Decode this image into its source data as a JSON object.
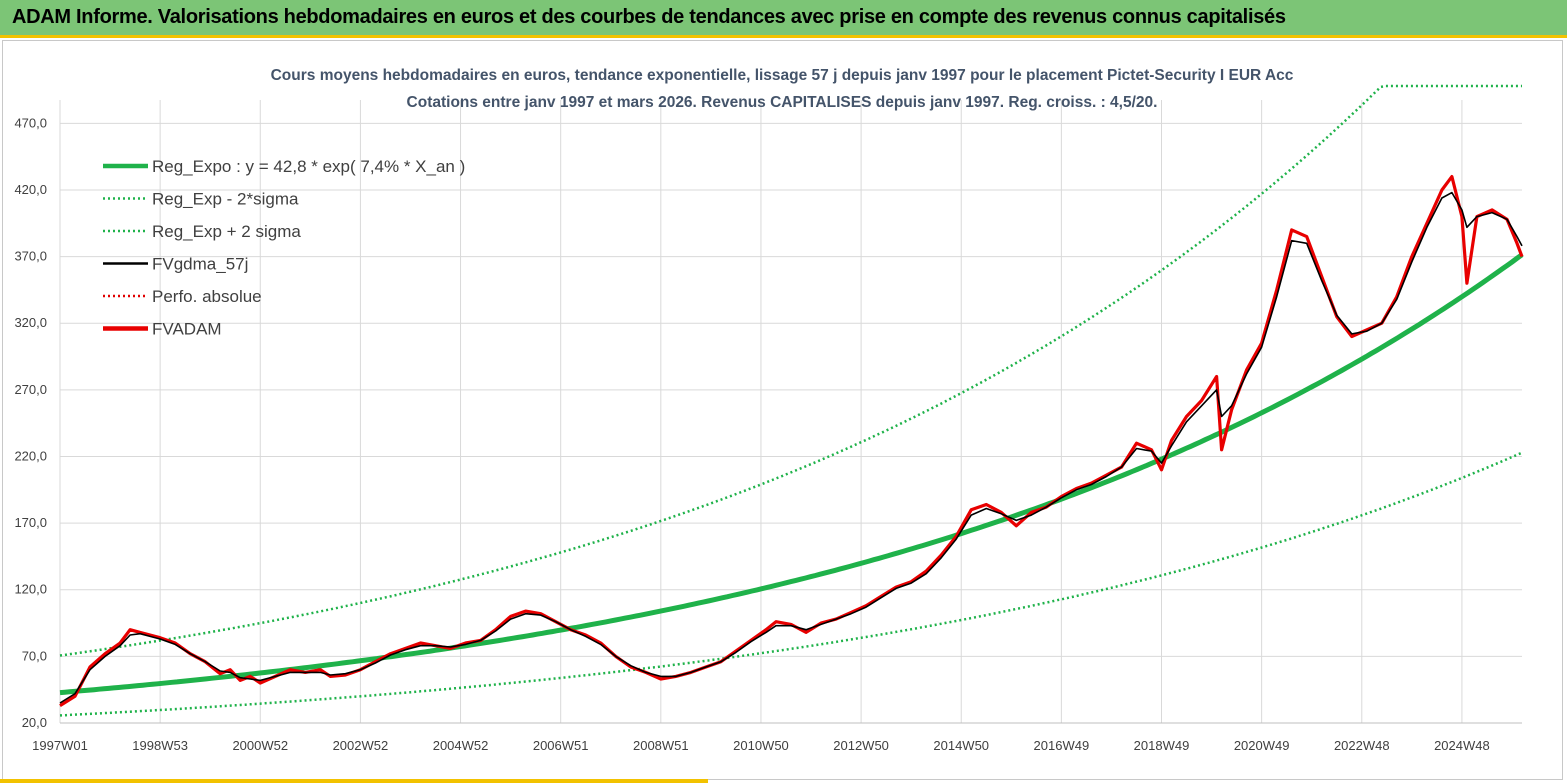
{
  "header": {
    "banner_title": "ADAM Informe. Valorisations hebdomadaires en euros et des courbes de tendances avec prise en compte des revenus connus capitalisés"
  },
  "colors": {
    "banner_bg": "#7cc576",
    "accent_yellow": "#f2c200",
    "reg_expo": "#1fb24a",
    "sigma_bands": "#1fb24a",
    "fvgdma": "#000000",
    "perfo": "#e00000",
    "fvadam": "#e80000",
    "grid": "#d9d9d9"
  },
  "chart_data": {
    "type": "line",
    "title": "Cours moyens hebdomadaires en euros, tendance exponentielle, lissage 57 j depuis janv 1997 pour le placement Pictet-Security I EUR Acc",
    "subtitle": "Cotations entre janv 1997 et mars 2026. Revenus CAPITALISES depuis janv 1997. Reg. croiss. : 4,5/20.",
    "xlabel": "",
    "ylabel": "",
    "x_range": [
      1997.0,
      2026.2
    ],
    "ylim": [
      20,
      480
    ],
    "y_ticks": [
      "20,0",
      "70,0",
      "120,0",
      "170,0",
      "220,0",
      "270,0",
      "320,0",
      "370,0",
      "420,0",
      "470,0"
    ],
    "x_tick_labels": [
      "1997W01",
      "1998W53",
      "2000W52",
      "2002W52",
      "2004W52",
      "2006W51",
      "2008W51",
      "2010W50",
      "2012W50",
      "2014W50",
      "2016W49",
      "2018W49",
      "2020W49",
      "2022W48",
      "2024W48"
    ],
    "x_tick_years": [
      1997.0,
      1999.0,
      2001.0,
      2003.0,
      2005.0,
      2007.0,
      2009.0,
      2011.0,
      2013.0,
      2015.0,
      2017.0,
      2019.0,
      2021.0,
      2023.0,
      2025.0
    ],
    "grid": true,
    "legend_position": "top-left",
    "legend": [
      {
        "label": "Reg_Expo : y = 42,8 * exp( 7,4% *  X_an )",
        "style": "solid-thick",
        "color": "#1fb24a"
      },
      {
        "label": "Reg_Exp - 2*sigma",
        "style": "dotted",
        "color": "#1fb24a"
      },
      {
        "label": "Reg_Exp + 2 sigma",
        "style": "dotted",
        "color": "#1fb24a"
      },
      {
        "label": "FVgdma_57j",
        "style": "solid",
        "color": "#000000"
      },
      {
        "label": "Perfo. absolue",
        "style": "dotted",
        "color": "#e00000"
      },
      {
        "label": "FVADAM",
        "style": "solid-thick",
        "color": "#e80000"
      }
    ],
    "regression": {
      "a": 42.8,
      "rate": 0.074,
      "minus_2sigma_factor": 0.6,
      "plus_2sigma_factor": 1.65,
      "plus_2sigma_clip": 500
    },
    "series": [
      {
        "name": "FVADAM",
        "points": [
          [
            1997.0,
            33
          ],
          [
            1997.3,
            40
          ],
          [
            1997.6,
            62
          ],
          [
            1997.9,
            72
          ],
          [
            1998.2,
            80
          ],
          [
            1998.4,
            90
          ],
          [
            1998.6,
            88
          ],
          [
            1998.8,
            86
          ],
          [
            1999.0,
            84
          ],
          [
            1999.3,
            80
          ],
          [
            1999.6,
            72
          ],
          [
            1999.9,
            66
          ],
          [
            2000.2,
            57
          ],
          [
            2000.4,
            60
          ],
          [
            2000.6,
            52
          ],
          [
            2000.8,
            55
          ],
          [
            2001.0,
            50
          ],
          [
            2001.3,
            55
          ],
          [
            2001.6,
            60
          ],
          [
            2001.9,
            58
          ],
          [
            2002.2,
            60
          ],
          [
            2002.4,
            55
          ],
          [
            2002.7,
            56
          ],
          [
            2003.0,
            60
          ],
          [
            2003.3,
            66
          ],
          [
            2003.6,
            72
          ],
          [
            2003.9,
            76
          ],
          [
            2004.2,
            80
          ],
          [
            2004.5,
            78
          ],
          [
            2004.8,
            76
          ],
          [
            2005.1,
            80
          ],
          [
            2005.4,
            82
          ],
          [
            2005.7,
            90
          ],
          [
            2006.0,
            100
          ],
          [
            2006.3,
            104
          ],
          [
            2006.6,
            102
          ],
          [
            2006.9,
            96
          ],
          [
            2007.2,
            90
          ],
          [
            2007.5,
            86
          ],
          [
            2007.8,
            80
          ],
          [
            2008.1,
            70
          ],
          [
            2008.4,
            62
          ],
          [
            2008.7,
            58
          ],
          [
            2009.0,
            53
          ],
          [
            2009.3,
            55
          ],
          [
            2009.6,
            58
          ],
          [
            2009.9,
            62
          ],
          [
            2010.2,
            66
          ],
          [
            2010.5,
            74
          ],
          [
            2010.8,
            82
          ],
          [
            2011.1,
            90
          ],
          [
            2011.3,
            96
          ],
          [
            2011.6,
            94
          ],
          [
            2011.9,
            88
          ],
          [
            2012.2,
            95
          ],
          [
            2012.5,
            98
          ],
          [
            2012.8,
            103
          ],
          [
            2013.1,
            108
          ],
          [
            2013.4,
            115
          ],
          [
            2013.7,
            122
          ],
          [
            2014.0,
            126
          ],
          [
            2014.3,
            134
          ],
          [
            2014.6,
            146
          ],
          [
            2014.9,
            160
          ],
          [
            2015.2,
            180
          ],
          [
            2015.5,
            184
          ],
          [
            2015.8,
            178
          ],
          [
            2016.1,
            168
          ],
          [
            2016.4,
            178
          ],
          [
            2016.7,
            182
          ],
          [
            2017.0,
            190
          ],
          [
            2017.3,
            196
          ],
          [
            2017.6,
            200
          ],
          [
            2017.9,
            206
          ],
          [
            2018.2,
            212
          ],
          [
            2018.5,
            230
          ],
          [
            2018.8,
            225
          ],
          [
            2019.0,
            210
          ],
          [
            2019.2,
            232
          ],
          [
            2019.5,
            250
          ],
          [
            2019.8,
            262
          ],
          [
            2020.1,
            280
          ],
          [
            2020.2,
            225
          ],
          [
            2020.4,
            255
          ],
          [
            2020.7,
            285
          ],
          [
            2021.0,
            305
          ],
          [
            2021.3,
            345
          ],
          [
            2021.6,
            390
          ],
          [
            2021.9,
            385
          ],
          [
            2022.2,
            355
          ],
          [
            2022.5,
            325
          ],
          [
            2022.8,
            310
          ],
          [
            2023.1,
            315
          ],
          [
            2023.4,
            320
          ],
          [
            2023.7,
            340
          ],
          [
            2024.0,
            370
          ],
          [
            2024.3,
            395
          ],
          [
            2024.6,
            420
          ],
          [
            2024.8,
            430
          ],
          [
            2025.0,
            400
          ],
          [
            2025.1,
            350
          ],
          [
            2025.3,
            400
          ],
          [
            2025.6,
            405
          ],
          [
            2025.9,
            398
          ],
          [
            2026.1,
            380
          ],
          [
            2026.2,
            370
          ]
        ]
      },
      {
        "name": "FVgdma_57j",
        "points": [
          [
            1997.0,
            35
          ],
          [
            1997.3,
            42
          ],
          [
            1997.6,
            60
          ],
          [
            1997.9,
            70
          ],
          [
            1998.2,
            78
          ],
          [
            1998.4,
            86
          ],
          [
            1998.6,
            87
          ],
          [
            1998.8,
            85
          ],
          [
            1999.0,
            83
          ],
          [
            1999.3,
            79
          ],
          [
            1999.6,
            72
          ],
          [
            1999.9,
            66
          ],
          [
            2000.2,
            59
          ],
          [
            2000.4,
            58
          ],
          [
            2000.6,
            54
          ],
          [
            2000.8,
            53
          ],
          [
            2001.0,
            52
          ],
          [
            2001.3,
            55
          ],
          [
            2001.6,
            58
          ],
          [
            2001.9,
            58
          ],
          [
            2002.2,
            58
          ],
          [
            2002.4,
            56
          ],
          [
            2002.7,
            57
          ],
          [
            2003.0,
            60
          ],
          [
            2003.3,
            65
          ],
          [
            2003.6,
            71
          ],
          [
            2003.9,
            75
          ],
          [
            2004.2,
            78
          ],
          [
            2004.5,
            78
          ],
          [
            2004.8,
            77
          ],
          [
            2005.1,
            79
          ],
          [
            2005.4,
            82
          ],
          [
            2005.7,
            89
          ],
          [
            2006.0,
            98
          ],
          [
            2006.3,
            102
          ],
          [
            2006.6,
            101
          ],
          [
            2006.9,
            96
          ],
          [
            2007.2,
            90
          ],
          [
            2007.5,
            85
          ],
          [
            2007.8,
            79
          ],
          [
            2008.1,
            70
          ],
          [
            2008.4,
            63
          ],
          [
            2008.7,
            58
          ],
          [
            2009.0,
            55
          ],
          [
            2009.3,
            55
          ],
          [
            2009.6,
            58
          ],
          [
            2009.9,
            62
          ],
          [
            2010.2,
            66
          ],
          [
            2010.5,
            73
          ],
          [
            2010.8,
            81
          ],
          [
            2011.1,
            88
          ],
          [
            2011.3,
            93
          ],
          [
            2011.6,
            93
          ],
          [
            2011.9,
            90
          ],
          [
            2012.2,
            94
          ],
          [
            2012.5,
            98
          ],
          [
            2012.8,
            102
          ],
          [
            2013.1,
            107
          ],
          [
            2013.4,
            114
          ],
          [
            2013.7,
            121
          ],
          [
            2014.0,
            125
          ],
          [
            2014.3,
            132
          ],
          [
            2014.6,
            144
          ],
          [
            2014.9,
            158
          ],
          [
            2015.2,
            176
          ],
          [
            2015.5,
            181
          ],
          [
            2015.8,
            177
          ],
          [
            2016.1,
            172
          ],
          [
            2016.4,
            176
          ],
          [
            2016.7,
            182
          ],
          [
            2017.0,
            189
          ],
          [
            2017.3,
            195
          ],
          [
            2017.6,
            199
          ],
          [
            2017.9,
            205
          ],
          [
            2018.2,
            212
          ],
          [
            2018.5,
            226
          ],
          [
            2018.8,
            224
          ],
          [
            2019.0,
            215
          ],
          [
            2019.2,
            228
          ],
          [
            2019.5,
            246
          ],
          [
            2019.8,
            258
          ],
          [
            2020.1,
            270
          ],
          [
            2020.2,
            250
          ],
          [
            2020.4,
            258
          ],
          [
            2020.7,
            282
          ],
          [
            2021.0,
            302
          ],
          [
            2021.3,
            340
          ],
          [
            2021.6,
            382
          ],
          [
            2021.9,
            380
          ],
          [
            2022.2,
            352
          ],
          [
            2022.5,
            326
          ],
          [
            2022.8,
            312
          ],
          [
            2023.1,
            314
          ],
          [
            2023.4,
            320
          ],
          [
            2023.7,
            338
          ],
          [
            2024.0,
            366
          ],
          [
            2024.3,
            392
          ],
          [
            2024.6,
            414
          ],
          [
            2024.8,
            418
          ],
          [
            2025.0,
            405
          ],
          [
            2025.1,
            392
          ],
          [
            2025.3,
            400
          ],
          [
            2025.6,
            403
          ],
          [
            2025.9,
            398
          ],
          [
            2026.1,
            385
          ],
          [
            2026.2,
            378
          ]
        ]
      }
    ]
  }
}
